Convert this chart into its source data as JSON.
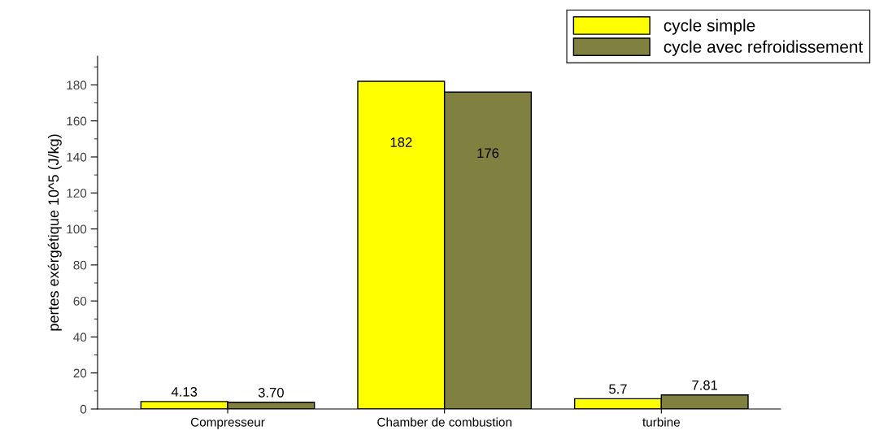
{
  "chart_data": {
    "type": "bar",
    "ylabel": "pertes exérgétique 10^5 (J/kg)",
    "categories": [
      "Compresseur",
      "Chamber de combustion",
      "turbine"
    ],
    "series": [
      {
        "name": "cycle simple",
        "color": "#ffff00",
        "values": [
          4.13,
          182,
          5.7
        ],
        "value_labels": [
          "4.13",
          "182",
          "5.7"
        ]
      },
      {
        "name": "cycle avec refroidissement",
        "color": "#808040",
        "values": [
          3.7,
          176,
          7.81
        ],
        "value_labels": [
          "3.70",
          "176",
          "7.81"
        ]
      }
    ],
    "ylim": [
      0,
      196
    ],
    "yticks": [
      0,
      20,
      40,
      60,
      80,
      100,
      120,
      140,
      160,
      180
    ],
    "grid": false,
    "legend": "top right"
  }
}
